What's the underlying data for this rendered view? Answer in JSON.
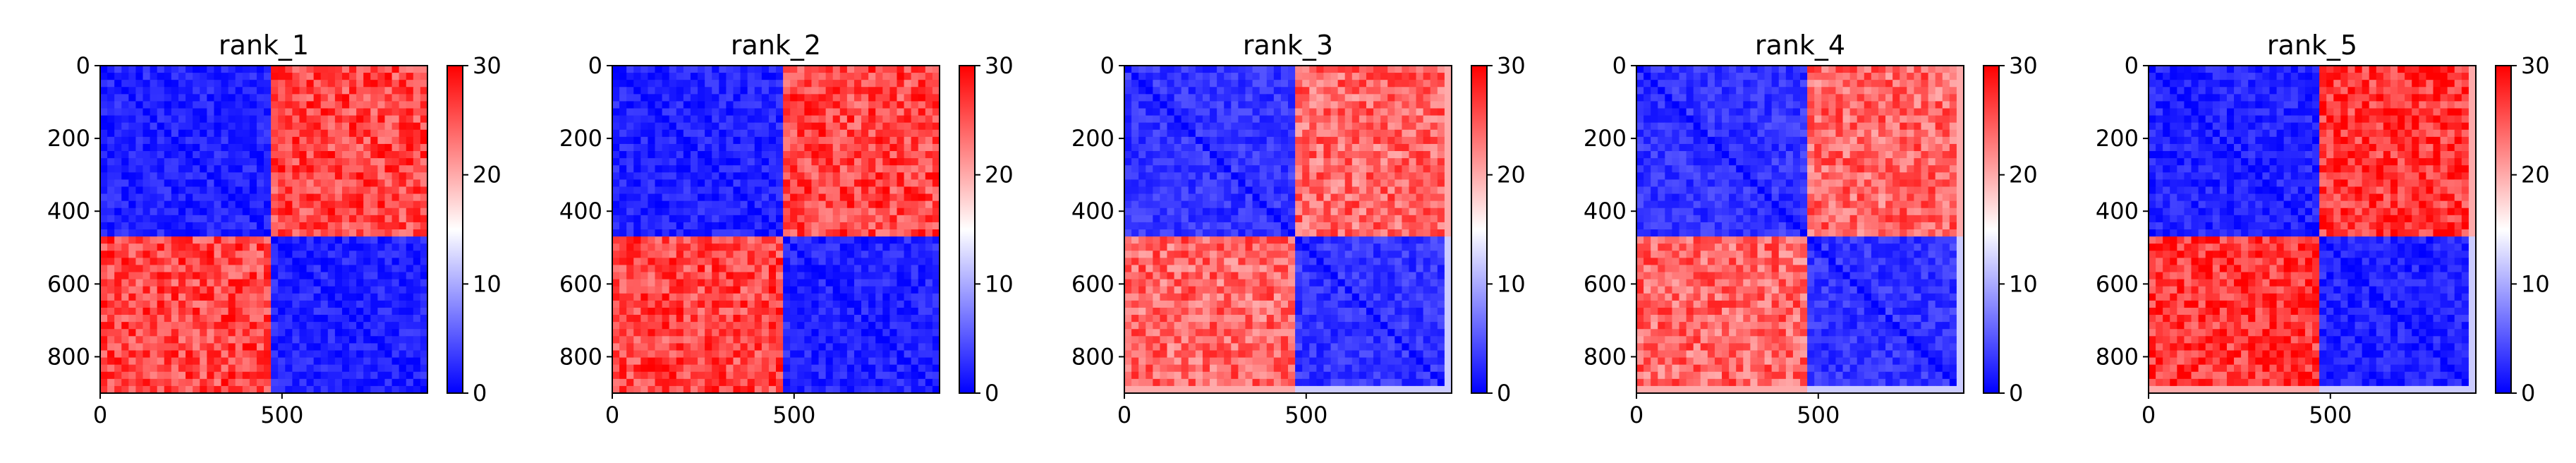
{
  "chart_data": [
    {
      "type": "heatmap",
      "title": "rank_1",
      "xlim": [
        0,
        900
      ],
      "ylim": [
        900,
        0
      ],
      "x_ticks": [
        0,
        500
      ],
      "y_ticks": [
        0,
        200,
        400,
        600,
        800
      ],
      "block_boundary": 460,
      "colorbar": {
        "min": 0,
        "max": 30,
        "ticks": [
          0,
          10,
          20,
          30
        ],
        "colors": [
          "#0000ff",
          "#ffffff",
          "#ff0000"
        ]
      },
      "blocks": {
        "within_block_value": 2,
        "between_block_value": 26
      },
      "edge_bands": []
    },
    {
      "type": "heatmap",
      "title": "rank_2",
      "xlim": [
        0,
        900
      ],
      "ylim": [
        900,
        0
      ],
      "x_ticks": [
        0,
        500
      ],
      "y_ticks": [
        0,
        200,
        400,
        600,
        800
      ],
      "block_boundary": 460,
      "colorbar": {
        "min": 0,
        "max": 30,
        "ticks": [
          0,
          10,
          20,
          30
        ],
        "colors": [
          "#0000ff",
          "#ffffff",
          "#ff0000"
        ]
      },
      "blocks": {
        "within_block_value": 2,
        "between_block_value": 26
      },
      "edge_bands": []
    },
    {
      "type": "heatmap",
      "title": "rank_3",
      "xlim": [
        0,
        900
      ],
      "ylim": [
        900,
        0
      ],
      "x_ticks": [
        0,
        500
      ],
      "y_ticks": [
        0,
        200,
        400,
        600,
        800
      ],
      "block_boundary": 460,
      "colorbar": {
        "min": 0,
        "max": 30,
        "ticks": [
          0,
          10,
          20,
          30
        ],
        "colors": [
          "#0000ff",
          "#ffffff",
          "#ff0000"
        ]
      },
      "blocks": {
        "within_block_value": 3,
        "between_block_value": 24
      },
      "edge_bands": [
        "bottom",
        "right"
      ]
    },
    {
      "type": "heatmap",
      "title": "rank_4",
      "xlim": [
        0,
        900
      ],
      "ylim": [
        900,
        0
      ],
      "x_ticks": [
        0,
        500
      ],
      "y_ticks": [
        0,
        200,
        400,
        600,
        800
      ],
      "block_boundary": 460,
      "colorbar": {
        "min": 0,
        "max": 30,
        "ticks": [
          0,
          10,
          20,
          30
        ],
        "colors": [
          "#0000ff",
          "#ffffff",
          "#ff0000"
        ]
      },
      "blocks": {
        "within_block_value": 3,
        "between_block_value": 24
      },
      "edge_bands": [
        "bottom",
        "right"
      ]
    },
    {
      "type": "heatmap",
      "title": "rank_5",
      "xlim": [
        0,
        900
      ],
      "ylim": [
        900,
        0
      ],
      "x_ticks": [
        0,
        500
      ],
      "y_ticks": [
        0,
        200,
        400,
        600,
        800
      ],
      "block_boundary": 460,
      "colorbar": {
        "min": 0,
        "max": 30,
        "ticks": [
          0,
          10,
          20,
          30
        ],
        "colors": [
          "#0000ff",
          "#ffffff",
          "#ff0000"
        ]
      },
      "blocks": {
        "within_block_value": 2,
        "between_block_value": 27
      },
      "edge_bands": [
        "bottom",
        "right"
      ]
    }
  ]
}
